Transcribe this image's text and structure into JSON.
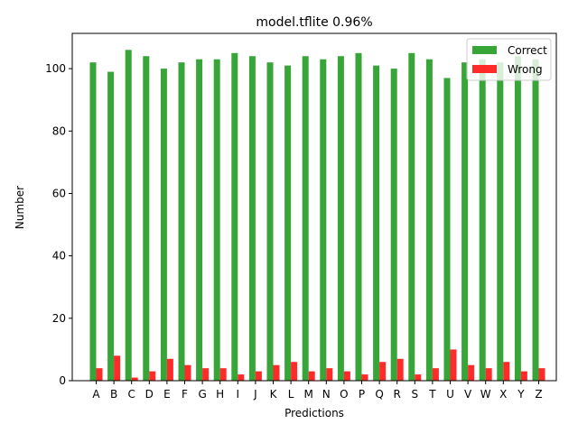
{
  "chart_data": {
    "type": "bar",
    "title": "model.tflite  0.96%",
    "xlabel": "Predictions",
    "ylabel": "Number",
    "categories": [
      "A",
      "B",
      "C",
      "D",
      "E",
      "F",
      "G",
      "H",
      "I",
      "J",
      "K",
      "L",
      "M",
      "N",
      "O",
      "P",
      "Q",
      "R",
      "S",
      "T",
      "U",
      "V",
      "W",
      "X",
      "Y",
      "Z"
    ],
    "series": [
      {
        "name": "Correct",
        "color": "#2ca02c",
        "values": [
          102,
          99,
          106,
          104,
          100,
          102,
          103,
          103,
          105,
          104,
          102,
          101,
          104,
          103,
          104,
          105,
          101,
          100,
          105,
          103,
          97,
          102,
          103,
          102,
          104,
          103
        ]
      },
      {
        "name": "Wrong",
        "color": "#ff2020",
        "values": [
          4,
          8,
          1,
          3,
          7,
          5,
          4,
          4,
          2,
          3,
          5,
          6,
          3,
          4,
          3,
          2,
          6,
          7,
          2,
          4,
          10,
          5,
          4,
          6,
          3,
          4
        ]
      }
    ],
    "ylim": [
      0,
      111.3
    ],
    "yticks": [
      0,
      20,
      40,
      60,
      80,
      100
    ],
    "grid": false,
    "legend_position": "top-right"
  }
}
